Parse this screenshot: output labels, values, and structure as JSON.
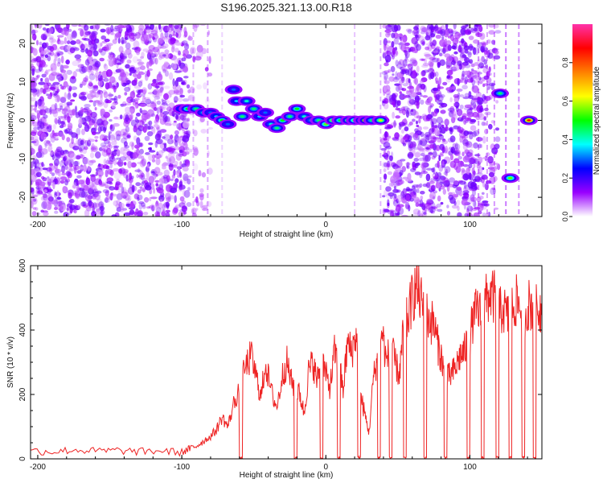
{
  "title": "S196.2025.321.13.00.R18",
  "chart_data": [
    {
      "type": "heatmap",
      "xlabel": "Height of straight line (km)",
      "ylabel": "Frequency (Hz)",
      "xlim": [
        -205,
        150
      ],
      "ylim": [
        -25,
        25
      ],
      "xticks": [
        -200,
        -100,
        0,
        100
      ],
      "xtick_labels": [
        "-200",
        "-100",
        "0",
        "100"
      ],
      "yticks": [
        -20,
        -10,
        0,
        10,
        20
      ],
      "ytick_labels": [
        "-20",
        "-10",
        "0",
        "10",
        "20"
      ],
      "colorbar": {
        "label": "Normalized spectral amplitude",
        "range": [
          0,
          1
        ],
        "ticks": [
          0.0,
          0.2,
          0.4,
          0.6,
          0.8
        ],
        "tick_labels": [
          "0.0",
          "0.2",
          "0.4",
          "0.6",
          "0.8"
        ],
        "colors": [
          "#ffffff",
          "#9900ff",
          "#0000ff",
          "#00ffff",
          "#00ff00",
          "#ffff00",
          "#ff8000",
          "#ff0000",
          "#ff33aa"
        ]
      },
      "noise_regions": [
        {
          "x": [
            -205,
            -95
          ],
          "density": "high",
          "level": 0.1
        },
        {
          "x": [
            -95,
            -80
          ],
          "density": "low",
          "level": 0.06
        },
        {
          "x": [
            40,
            110
          ],
          "density": "high",
          "level": 0.12
        },
        {
          "x": [
            110,
            120
          ],
          "density": "medium",
          "level": 0.1
        }
      ],
      "signal_track": [
        {
          "x": -100,
          "f": 3,
          "a": 0.3
        },
        {
          "x": -96,
          "f": 3,
          "a": 0.5
        },
        {
          "x": -90,
          "f": 3,
          "a": 0.45
        },
        {
          "x": -85,
          "f": 2,
          "a": 0.4
        },
        {
          "x": -80,
          "f": 2,
          "a": 0.3
        },
        {
          "x": -76,
          "f": 1,
          "a": 0.35
        },
        {
          "x": -72,
          "f": 0,
          "a": 0.5
        },
        {
          "x": -68,
          "f": -1,
          "a": 0.3
        },
        {
          "x": -64,
          "f": 8,
          "a": 0.3
        },
        {
          "x": -62,
          "f": 5,
          "a": 0.35
        },
        {
          "x": -58,
          "f": 1,
          "a": 0.45
        },
        {
          "x": -55,
          "f": 5,
          "a": 0.4
        },
        {
          "x": -50,
          "f": 3,
          "a": 0.45
        },
        {
          "x": -46,
          "f": 1,
          "a": 0.35
        },
        {
          "x": -42,
          "f": 2,
          "a": 0.3
        },
        {
          "x": -38,
          "f": -1,
          "a": 0.4
        },
        {
          "x": -34,
          "f": -2,
          "a": 0.45
        },
        {
          "x": -30,
          "f": 0,
          "a": 0.5
        },
        {
          "x": -25,
          "f": 1,
          "a": 0.45
        },
        {
          "x": -20,
          "f": 3,
          "a": 0.5
        },
        {
          "x": -15,
          "f": 1,
          "a": 0.4
        },
        {
          "x": -10,
          "f": 0,
          "a": 0.4
        },
        {
          "x": -5,
          "f": 0,
          "a": 0.45
        },
        {
          "x": 0,
          "f": -1,
          "a": 0.55
        },
        {
          "x": 5,
          "f": 0,
          "a": 0.6
        },
        {
          "x": 10,
          "f": 0,
          "a": 0.5
        },
        {
          "x": 16,
          "f": 0,
          "a": 0.6
        },
        {
          "x": 20,
          "f": 0,
          "a": 0.55
        },
        {
          "x": 25,
          "f": 0,
          "a": 0.5
        },
        {
          "x": 28,
          "f": 0,
          "a": 0.8
        },
        {
          "x": 32,
          "f": 0,
          "a": 0.45
        },
        {
          "x": 38,
          "f": 0,
          "a": 0.6
        },
        {
          "x": 121,
          "f": 7,
          "a": 0.45
        },
        {
          "x": 128,
          "f": -15,
          "a": 0.55
        },
        {
          "x": 141,
          "f": 0,
          "a": 0.85
        }
      ]
    },
    {
      "type": "line",
      "xlabel": "Height of straight line (km)",
      "ylabel": "SNR (10 * v/v)",
      "xlim": [
        -205,
        150
      ],
      "ylim": [
        0,
        600
      ],
      "xticks": [
        -200,
        -100,
        0,
        100
      ],
      "xtick_labels": [
        "-200",
        "-100",
        "0",
        "100"
      ],
      "yticks": [
        0,
        200,
        400,
        600
      ],
      "ytick_labels": [
        "0",
        "200",
        "400",
        "600"
      ],
      "series": [
        {
          "name": "SNR",
          "color": "#ee2222",
          "x": [
            -205,
            -190,
            -175,
            -160,
            -145,
            -130,
            -115,
            -100,
            -95,
            -90,
            -85,
            -80,
            -76,
            -72,
            -68,
            -64,
            -60,
            -56,
            -52,
            -48,
            -45,
            -42,
            -38,
            -34,
            -30,
            -27,
            -24,
            -21,
            -18,
            -15,
            -12,
            -9,
            -6,
            -3,
            0,
            3,
            6,
            9,
            12,
            15,
            18,
            21,
            24,
            27,
            30,
            33,
            36,
            39,
            42,
            45,
            48,
            51,
            54,
            57,
            60,
            63,
            66,
            69,
            72,
            75,
            78,
            81,
            84,
            87,
            90,
            93,
            96,
            99,
            102,
            105,
            108,
            111,
            114,
            117,
            120,
            123,
            126,
            129,
            132,
            135,
            138,
            141,
            144,
            147,
            150
          ],
          "values": [
            25,
            22,
            28,
            24,
            26,
            22,
            25,
            20,
            30,
            40,
            55,
            70,
            90,
            130,
            100,
            170,
            220,
            280,
            320,
            250,
            190,
            300,
            210,
            160,
            260,
            300,
            240,
            220,
            200,
            140,
            270,
            300,
            240,
            320,
            260,
            220,
            330,
            300,
            210,
            360,
            330,
            390,
            200,
            140,
            80,
            250,
            320,
            400,
            300,
            350,
            300,
            260,
            400,
            440,
            500,
            540,
            490,
            460,
            430,
            420,
            350,
            300,
            250,
            260,
            280,
            320,
            330,
            370,
            420,
            470,
            440,
            490,
            510,
            500,
            450,
            470,
            440,
            460,
            490,
            470,
            450,
            480,
            470,
            460,
            470
          ]
        }
      ],
      "dropouts": [
        {
          "x": [
            -60,
            -58
          ]
        },
        {
          "x": [
            -22,
            -20
          ]
        },
        {
          "x": [
            -4,
            -2
          ]
        },
        {
          "x": [
            8,
            10
          ]
        },
        {
          "x": [
            22,
            24
          ]
        },
        {
          "x": [
            36,
            38
          ]
        },
        {
          "x": [
            44,
            46
          ]
        },
        {
          "x": [
            54,
            56
          ]
        },
        {
          "x": [
            68,
            70
          ]
        },
        {
          "x": [
            82,
            84
          ]
        },
        {
          "x": [
            98,
            100
          ]
        },
        {
          "x": [
            108,
            110
          ]
        },
        {
          "x": [
            118,
            120
          ]
        },
        {
          "x": [
            127,
            129
          ]
        },
        {
          "x": [
            136,
            138
          ]
        },
        {
          "x": [
            144,
            146
          ]
        }
      ]
    }
  ]
}
